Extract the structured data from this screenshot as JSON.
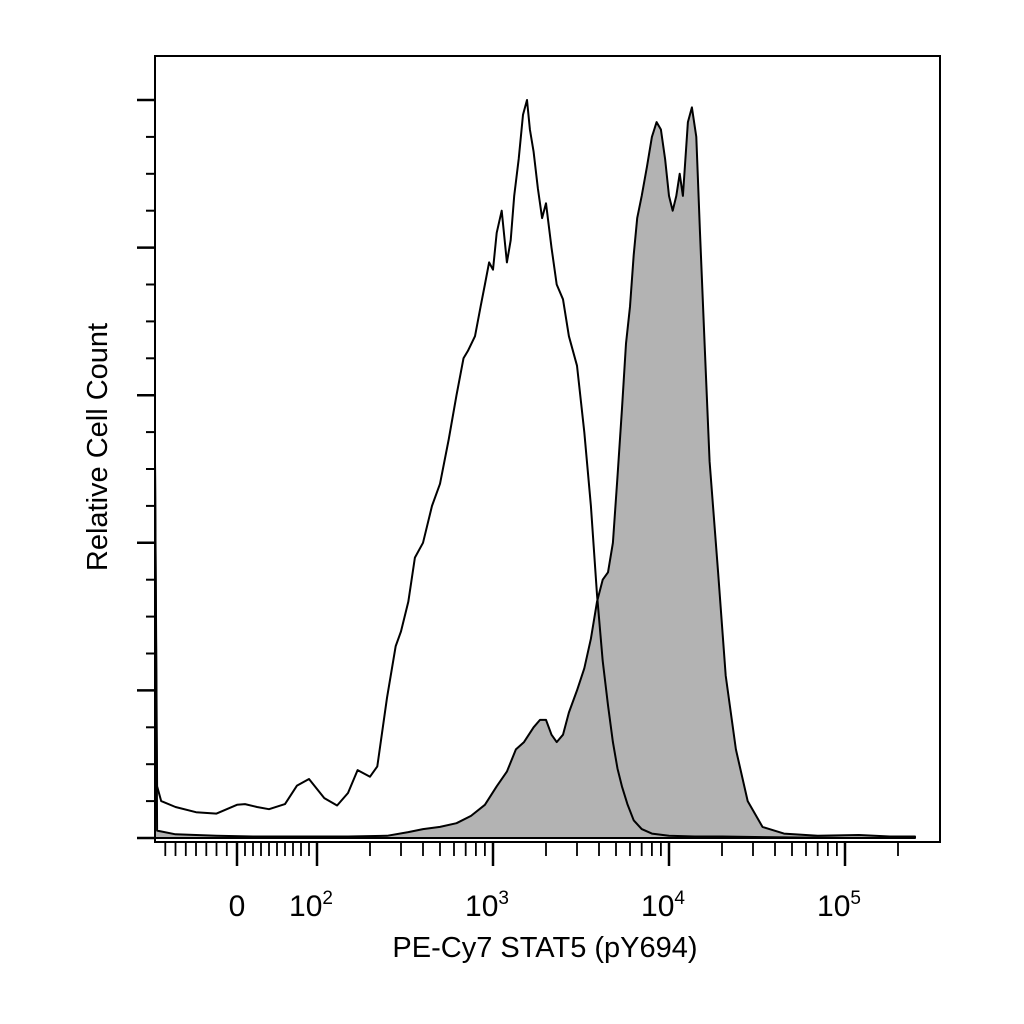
{
  "chart_data": {
    "type": "area",
    "title": "",
    "xlabel": "PE-Cy7 STAT5 (pY694)",
    "ylabel": "Relative Cell Count",
    "x_scale": "biexponential",
    "xlim": [
      -80,
      250000
    ],
    "ylim": [
      0,
      100
    ],
    "grid": false,
    "legend": "none",
    "x_tick_labels": [
      {
        "base": "0",
        "exp": "",
        "value": 0
      },
      {
        "base": "10",
        "exp": "2",
        "value": 100
      },
      {
        "base": "10",
        "exp": "3",
        "value": 1000
      },
      {
        "base": "10",
        "exp": "4",
        "value": 10000
      },
      {
        "base": "10",
        "exp": "5",
        "value": 100000
      }
    ],
    "colors": {
      "filled": "#b3b3b3",
      "outline": "#000000",
      "axis": "#000000"
    },
    "series": [
      {
        "style": "open",
        "x": [
          -80,
          -78,
          -74,
          -60,
          -40,
          -20,
          0,
          10,
          25,
          40,
          60,
          75,
          90,
          110,
          130,
          150,
          170,
          200,
          220,
          250,
          280,
          300,
          330,
          360,
          400,
          450,
          500,
          560,
          620,
          680,
          720,
          790,
          850,
          900,
          950,
          1000,
          1050,
          1120,
          1200,
          1260,
          1320,
          1400,
          1480,
          1560,
          1620,
          1700,
          1800,
          1900,
          2000,
          2150,
          2300,
          2500,
          2700,
          3000,
          3300,
          3600,
          3900,
          4200,
          4500,
          4800,
          5100,
          5400,
          5800,
          6300,
          7000,
          8000,
          10000,
          14000,
          20000,
          40000,
          100000,
          250000
        ],
        "y": [
          51,
          7,
          5,
          4.2,
          3.5,
          3.3,
          4.5,
          4.6,
          4.2,
          3.9,
          4.6,
          7.1,
          8.0,
          5.4,
          4.4,
          6.1,
          9.2,
          8.3,
          9.7,
          19,
          26,
          28,
          32,
          38,
          40,
          45,
          48,
          54,
          60,
          65,
          66,
          68,
          72,
          75,
          78,
          77,
          82,
          85,
          78,
          81,
          87,
          92,
          98,
          100,
          96,
          93,
          88,
          84,
          86,
          80,
          75,
          73,
          68,
          64,
          55,
          45,
          33,
          24,
          18,
          13,
          9.4,
          7.0,
          4.6,
          2.4,
          1.2,
          0.6,
          0.3,
          0.2,
          0.2,
          0.1,
          0.0,
          0.0
        ]
      },
      {
        "style": "filled",
        "x": [
          -80,
          -78,
          -60,
          -20,
          20,
          80,
          150,
          250,
          330,
          400,
          500,
          620,
          750,
          900,
          1050,
          1200,
          1350,
          1500,
          1700,
          1850,
          2000,
          2150,
          2300,
          2500,
          2700,
          3000,
          3300,
          3600,
          3900,
          4200,
          4500,
          4800,
          5100,
          5400,
          5700,
          6000,
          6300,
          6600,
          7000,
          7500,
          8000,
          8500,
          9000,
          9500,
          10000,
          10500,
          11000,
          11500,
          12000,
          12800,
          13500,
          14300,
          15000,
          16000,
          17000,
          19000,
          21000,
          24000,
          28000,
          34000,
          45000,
          70000,
          120000,
          180000,
          250000
        ],
        "y": [
          51,
          1,
          0.5,
          0.3,
          0.2,
          0.2,
          0.2,
          0.3,
          0.8,
          1.2,
          1.5,
          2,
          3,
          4.5,
          7,
          9,
          12,
          13,
          15,
          16,
          16,
          14,
          13,
          14,
          17,
          20,
          23,
          27,
          32,
          35,
          36,
          40,
          49,
          58,
          67,
          72,
          79,
          84,
          87,
          91,
          95,
          97,
          96,
          92,
          87,
          85,
          87,
          90,
          87,
          97,
          99,
          95,
          82,
          66,
          51,
          36,
          22,
          12,
          5,
          1.5,
          0.6,
          0.3,
          0.4,
          0.2,
          0.2
        ]
      }
    ]
  }
}
